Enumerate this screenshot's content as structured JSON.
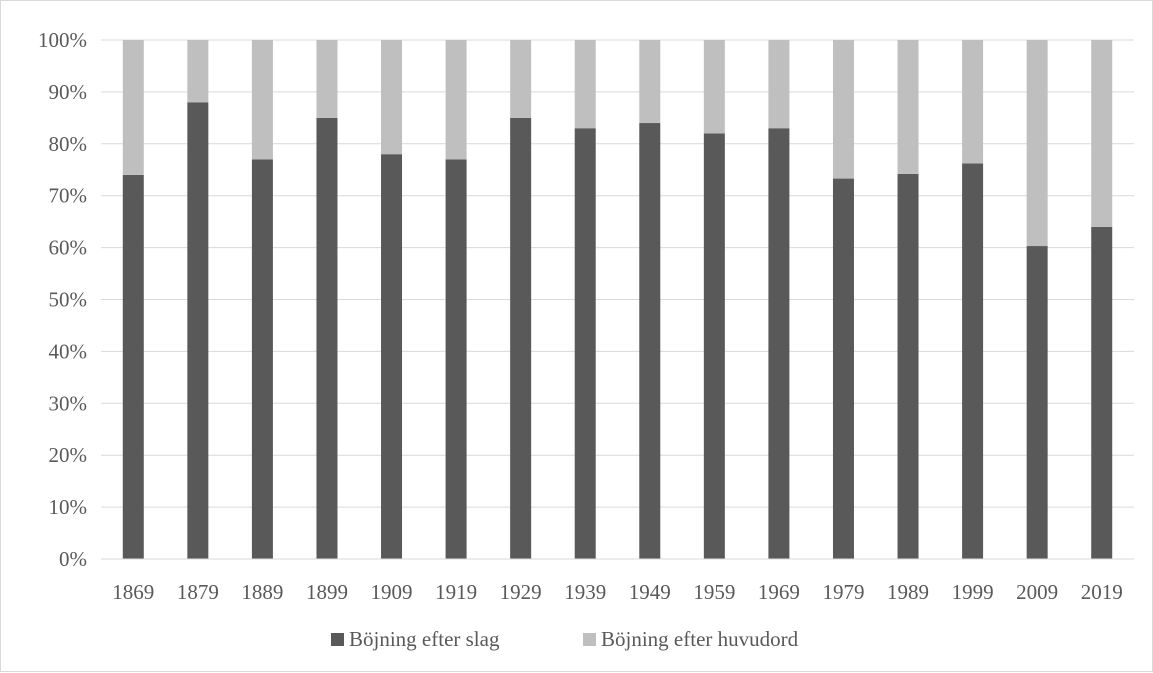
{
  "chart_data": {
    "type": "bar",
    "stacked": true,
    "percent_stacked": true,
    "categories": [
      "1869",
      "1879",
      "1889",
      "1899",
      "1909",
      "1919",
      "1929",
      "1939",
      "1949",
      "1959",
      "1969",
      "1979",
      "1989",
      "1999",
      "2009",
      "2019"
    ],
    "series": [
      {
        "name": "Böjning efter slag",
        "color": "#595959",
        "values": [
          74,
          88,
          77,
          85,
          78,
          77,
          85,
          83,
          84,
          82,
          83,
          73.3,
          74.2,
          76.2,
          60.3,
          64
        ]
      },
      {
        "name": "Böjning efter huvudord",
        "color": "#bfbfbf",
        "values": [
          26,
          12,
          23,
          15,
          22,
          23,
          15,
          17,
          16,
          18,
          17,
          26.7,
          25.8,
          23.8,
          39.7,
          36
        ]
      }
    ],
    "y_ticks": [
      "0%",
      "10%",
      "20%",
      "30%",
      "40%",
      "50%",
      "60%",
      "70%",
      "80%",
      "90%",
      "100%"
    ],
    "ylim": [
      0,
      100
    ],
    "grid": true,
    "legend_position": "bottom",
    "title": "",
    "xlabel": "",
    "ylabel": ""
  }
}
